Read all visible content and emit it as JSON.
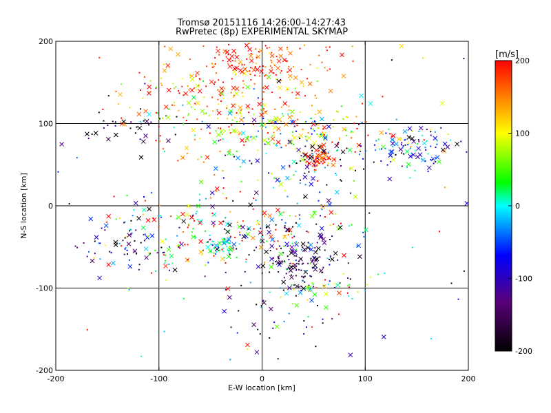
{
  "chart_data": {
    "type": "scatter",
    "title": "Tromsø 20151116 14:26:00–14:27:43",
    "subtitle": "RwPretec (8p) EXPERIMENTAL SKYMAP",
    "xlabel": "E-W location [km]",
    "ylabel": "N-S location [km]",
    "xlim": [
      -200,
      200
    ],
    "ylim": [
      -200,
      200
    ],
    "xticks": [
      -200,
      -100,
      0,
      100,
      200
    ],
    "yticks": [
      -200,
      -100,
      0,
      100,
      200
    ],
    "grid": true,
    "colorbar": {
      "label": "[m/s]",
      "min": -200,
      "max": 200,
      "ticks": [
        200,
        100,
        0,
        -100,
        -200
      ],
      "colormap": [
        "#000000",
        "#5a007a",
        "#0000ff",
        "#00ffff",
        "#00ff00",
        "#ffff00",
        "#ff0000"
      ]
    },
    "marker_types": [
      "dot",
      "cross"
    ],
    "clusters": [
      {
        "x": -20,
        "y": 150,
        "sx": 45,
        "sy": 30,
        "n": 180,
        "v": 170,
        "vs": 50
      },
      {
        "x": 0,
        "y": 175,
        "sx": 30,
        "sy": 15,
        "n": 90,
        "v": 180,
        "vs": 30
      },
      {
        "x": -80,
        "y": 120,
        "sx": 25,
        "sy": 20,
        "n": 60,
        "v": 120,
        "vs": 80
      },
      {
        "x": 30,
        "y": 95,
        "sx": 40,
        "sy": 15,
        "n": 120,
        "v": 90,
        "vs": 90
      },
      {
        "x": 55,
        "y": 57,
        "sx": 8,
        "sy": 6,
        "n": 60,
        "v": 180,
        "vs": 20
      },
      {
        "x": 60,
        "y": 60,
        "sx": 25,
        "sy": 25,
        "n": 100,
        "v": -50,
        "vs": 130
      },
      {
        "x": 150,
        "y": 70,
        "sx": 25,
        "sy": 15,
        "n": 110,
        "v": -60,
        "vs": 90
      },
      {
        "x": -35,
        "y": 80,
        "sx": 35,
        "sy": 25,
        "n": 80,
        "v": 80,
        "vs": 120
      },
      {
        "x": -125,
        "y": 90,
        "sx": 25,
        "sy": 15,
        "n": 35,
        "v": -170,
        "vs": 60
      },
      {
        "x": -60,
        "y": -30,
        "sx": 50,
        "sy": 25,
        "n": 200,
        "v": 60,
        "vs": 150
      },
      {
        "x": -40,
        "y": -50,
        "sx": 8,
        "sy": 6,
        "n": 40,
        "v": 0,
        "vs": 20
      },
      {
        "x": 40,
        "y": -70,
        "sx": 20,
        "sy": 20,
        "n": 120,
        "v": -160,
        "vs": 60
      },
      {
        "x": 30,
        "y": -30,
        "sx": 30,
        "sy": 25,
        "n": 100,
        "v": 20,
        "vs": 140
      },
      {
        "x": -140,
        "y": -50,
        "sx": 20,
        "sy": 20,
        "n": 50,
        "v": -100,
        "vs": 130
      },
      {
        "x": 55,
        "y": -100,
        "sx": 20,
        "sy": 12,
        "n": 40,
        "v": 60,
        "vs": 80
      },
      {
        "x": 10,
        "y": -130,
        "sx": 30,
        "sy": 30,
        "n": 50,
        "v": -120,
        "vs": 110
      },
      {
        "x": 0,
        "y": 0,
        "sx": 180,
        "sy": 180,
        "n": 120,
        "v": 40,
        "vs": 170
      }
    ]
  }
}
